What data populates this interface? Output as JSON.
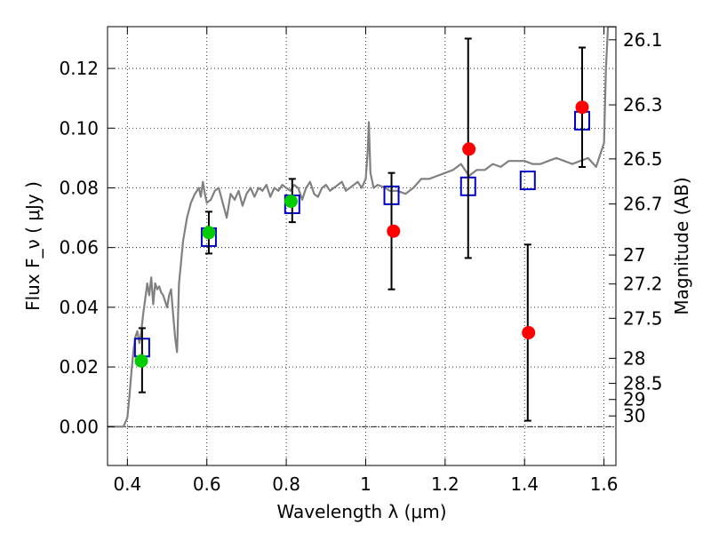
{
  "chart_data": {
    "type": "scatter",
    "title": "",
    "xlabel": "Wavelength  λ (μm)",
    "ylabel": "Flux  F_ν  ( μJy )",
    "ylabel_right": "Magnitude (AB)",
    "xlim": [
      0.35,
      1.63
    ],
    "ylim": [
      -0.013,
      0.134
    ],
    "grid": true,
    "x_ticks": [
      0.4,
      0.6,
      0.8,
      1.0,
      1.2,
      1.4,
      1.6
    ],
    "x_tick_labels": [
      "0.4",
      "0.6",
      "0.8",
      "1",
      "1.2",
      "1.4",
      "1.6"
    ],
    "y_ticks": [
      0.0,
      0.02,
      0.04,
      0.06,
      0.08,
      0.1,
      0.12
    ],
    "y_tick_labels": [
      "0.00",
      "0.02",
      "0.04",
      "0.06",
      "0.08",
      "0.10",
      "0.12"
    ],
    "right_ticks": [
      {
        "label": "26.1",
        "flux": 0.1296
      },
      {
        "label": "26.3",
        "flux": 0.1078
      },
      {
        "label": "26.5",
        "flux": 0.0897
      },
      {
        "label": "26.7",
        "flux": 0.0746
      },
      {
        "label": "27",
        "flux": 0.0575
      },
      {
        "label": "27.2",
        "flux": 0.0478
      },
      {
        "label": "27.5",
        "flux": 0.0363
      },
      {
        "label": "28",
        "flux": 0.0229
      },
      {
        "label": "28.5",
        "flux": 0.0145
      },
      {
        "label": "29",
        "flux": 0.0091
      },
      {
        "label": "30",
        "flux": 0.0036
      }
    ],
    "series": [
      {
        "kind": "line",
        "color": "#808080",
        "x": [
          0.35,
          0.39,
          0.4,
          0.405,
          0.41,
          0.415,
          0.42,
          0.425,
          0.43,
          0.435,
          0.44,
          0.445,
          0.45,
          0.455,
          0.46,
          0.465,
          0.47,
          0.475,
          0.48,
          0.485,
          0.49,
          0.495,
          0.5,
          0.505,
          0.51,
          0.515,
          0.52,
          0.525,
          0.53,
          0.535,
          0.54,
          0.55,
          0.56,
          0.57,
          0.58,
          0.585,
          0.59,
          0.595,
          0.6,
          0.61,
          0.62,
          0.63,
          0.64,
          0.65,
          0.66,
          0.67,
          0.68,
          0.69,
          0.7,
          0.71,
          0.72,
          0.73,
          0.74,
          0.75,
          0.76,
          0.77,
          0.78,
          0.79,
          0.8,
          0.81,
          0.82,
          0.83,
          0.84,
          0.85,
          0.86,
          0.87,
          0.88,
          0.89,
          0.9,
          0.91,
          0.92,
          0.93,
          0.94,
          0.95,
          0.96,
          0.97,
          0.98,
          0.99,
          1.0,
          1.005,
          1.008,
          1.012,
          1.02,
          1.03,
          1.05,
          1.06,
          1.08,
          1.1,
          1.12,
          1.14,
          1.16,
          1.18,
          1.2,
          1.22,
          1.24,
          1.26,
          1.28,
          1.3,
          1.32,
          1.34,
          1.36,
          1.38,
          1.4,
          1.42,
          1.44,
          1.46,
          1.48,
          1.5,
          1.52,
          1.54,
          1.56,
          1.58,
          1.6,
          1.605,
          1.61,
          1.62,
          1.63
        ],
        "y": [
          0.0,
          0.0,
          0.003,
          0.01,
          0.018,
          0.025,
          0.03,
          0.032,
          0.028,
          0.032,
          0.038,
          0.043,
          0.048,
          0.044,
          0.05,
          0.041,
          0.048,
          0.046,
          0.047,
          0.045,
          0.044,
          0.042,
          0.04,
          0.044,
          0.046,
          0.038,
          0.03,
          0.025,
          0.048,
          0.055,
          0.062,
          0.07,
          0.075,
          0.078,
          0.08,
          0.077,
          0.082,
          0.078,
          0.075,
          0.076,
          0.079,
          0.08,
          0.075,
          0.07,
          0.078,
          0.076,
          0.079,
          0.074,
          0.078,
          0.08,
          0.077,
          0.08,
          0.079,
          0.081,
          0.077,
          0.08,
          0.079,
          0.081,
          0.08,
          0.079,
          0.081,
          0.08,
          0.076,
          0.08,
          0.082,
          0.078,
          0.077,
          0.08,
          0.081,
          0.079,
          0.08,
          0.081,
          0.082,
          0.079,
          0.08,
          0.081,
          0.082,
          0.08,
          0.083,
          0.092,
          0.102,
          0.085,
          0.08,
          0.081,
          0.08,
          0.079,
          0.079,
          0.078,
          0.08,
          0.083,
          0.083,
          0.084,
          0.085,
          0.086,
          0.088,
          0.084,
          0.086,
          0.086,
          0.088,
          0.087,
          0.089,
          0.089,
          0.089,
          0.088,
          0.088,
          0.089,
          0.09,
          0.089,
          0.088,
          0.089,
          0.09,
          0.087,
          0.095,
          0.12,
          0.134,
          0.134,
          0.134
        ]
      },
      {
        "kind": "square",
        "color": "#0000cc",
        "x": [
          0.437,
          0.605,
          0.815,
          1.065,
          1.258,
          1.408,
          1.545
        ],
        "y": [
          0.0265,
          0.0635,
          0.0745,
          0.0775,
          0.0805,
          0.0825,
          0.1025
        ]
      },
      {
        "kind": "errorbar",
        "color": "#000000",
        "x": [
          0.437,
          0.605,
          0.815,
          1.065,
          1.258,
          1.408,
          1.545
        ],
        "ylow": [
          0.0115,
          0.058,
          0.0685,
          0.046,
          0.0565,
          0.002,
          0.087
        ],
        "yhigh": [
          0.033,
          0.072,
          0.083,
          0.085,
          0.13,
          0.061,
          0.127
        ]
      },
      {
        "kind": "circle",
        "color": "#00cc00",
        "x": [
          0.435,
          0.605,
          0.812
        ],
        "y": [
          0.022,
          0.065,
          0.0755
        ]
      },
      {
        "kind": "circle",
        "color": "#ff0000",
        "x": [
          1.07,
          1.26,
          1.41,
          1.545
        ],
        "y": [
          0.0655,
          0.093,
          0.0315,
          0.107
        ]
      }
    ]
  }
}
